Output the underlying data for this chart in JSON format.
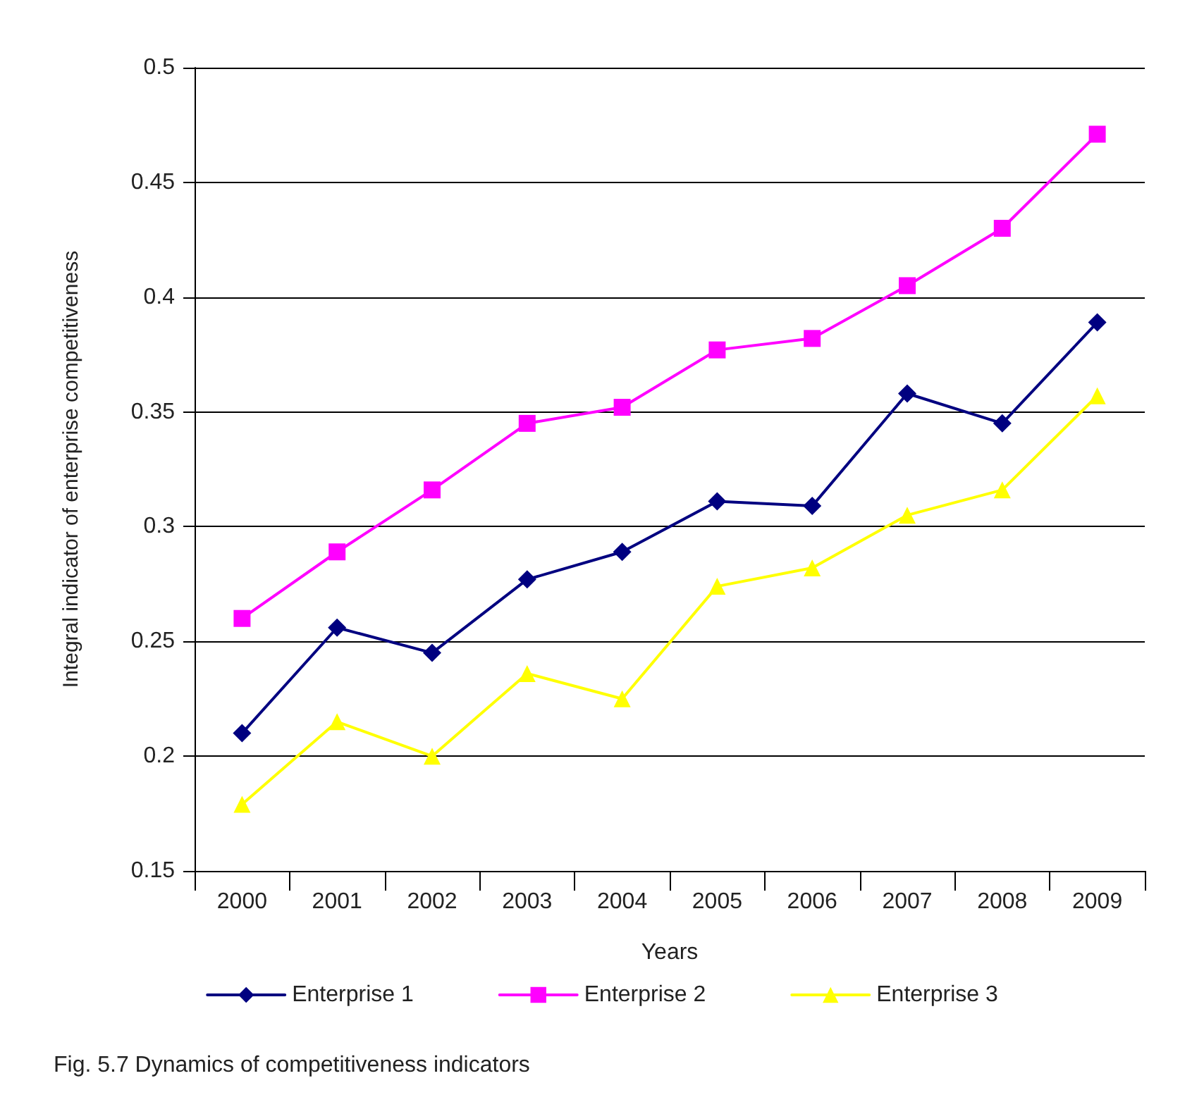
{
  "chart_data": {
    "type": "line",
    "xlabel": "Years",
    "ylabel": "Integral indicator of enterprise competitiveness",
    "categories": [
      "2000",
      "2001",
      "2002",
      "2003",
      "2004",
      "2005",
      "2006",
      "2007",
      "2008",
      "2009"
    ],
    "series": [
      {
        "name": "Enterprise 1",
        "color": "#000080",
        "marker": "diamond",
        "values": [
          0.21,
          0.256,
          0.245,
          0.277,
          0.289,
          0.311,
          0.309,
          0.358,
          0.345,
          0.389
        ]
      },
      {
        "name": "Enterprise 2",
        "color": "#ff00ff",
        "marker": "square",
        "values": [
          0.26,
          0.289,
          0.316,
          0.345,
          0.352,
          0.377,
          0.382,
          0.405,
          0.43,
          0.471
        ]
      },
      {
        "name": "Enterprise 3",
        "color": "#ffff00",
        "marker": "triangle",
        "values": [
          0.179,
          0.215,
          0.2,
          0.236,
          0.225,
          0.274,
          0.282,
          0.305,
          0.316,
          0.357
        ]
      }
    ],
    "ylim": [
      0.15,
      0.5
    ],
    "yticks": [
      0.15,
      0.2,
      0.25,
      0.3,
      0.35,
      0.4,
      0.45,
      0.5
    ],
    "grid": "y",
    "legend": "bottom",
    "line_style": "solid",
    "annotations": [
      "Fig. 5.7 Dynamics of competitiveness indicators"
    ]
  }
}
